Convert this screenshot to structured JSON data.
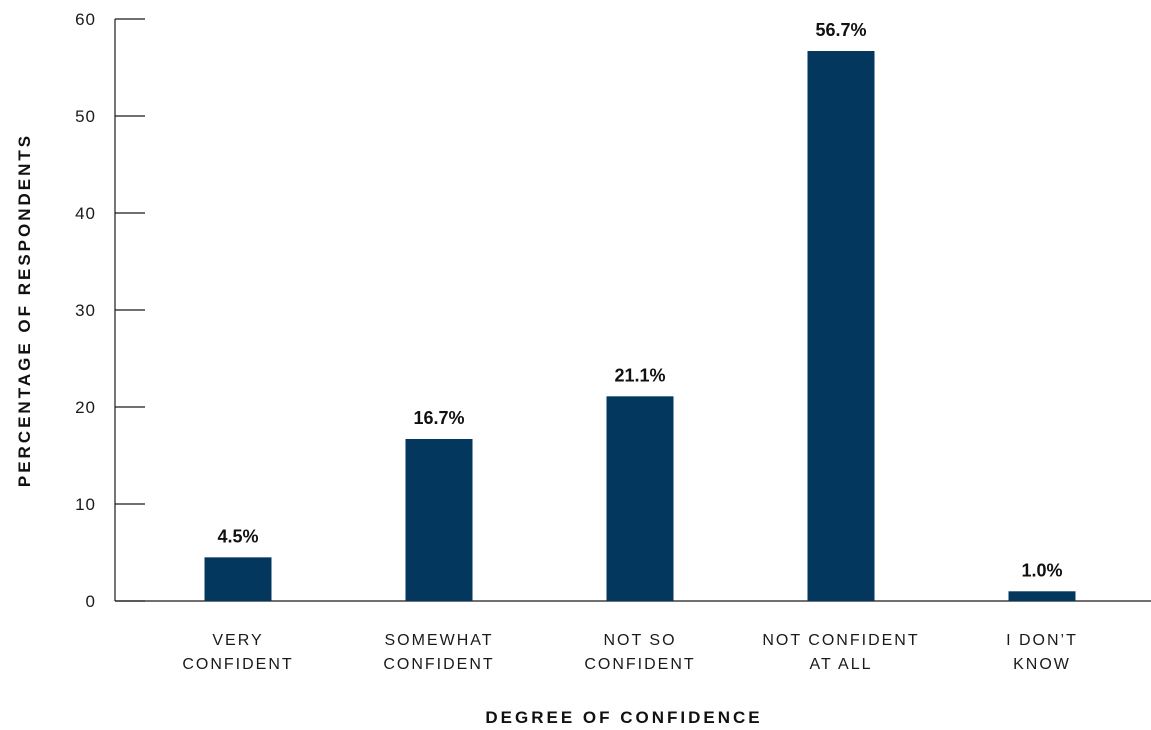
{
  "chart_data": {
    "type": "bar",
    "categories": [
      [
        "VERY",
        "CONFIDENT"
      ],
      [
        "SOMEWHAT",
        "CONFIDENT"
      ],
      [
        "NOT SO",
        "CONFIDENT"
      ],
      [
        "NOT CONFIDENT",
        "AT ALL"
      ],
      [
        "I DON’T",
        "KNOW"
      ]
    ],
    "values": [
      4.5,
      16.7,
      21.1,
      56.7,
      1.0
    ],
    "data_labels": [
      "4.5%",
      "16.7%",
      "21.1%",
      "56.7%",
      "1.0%"
    ],
    "xlabel": "DEGREE OF CONFIDENCE",
    "ylabel": "PERCENTAGE OF RESPONDENTS",
    "ylim": [
      0,
      60
    ],
    "yticks": [
      0,
      10,
      20,
      30,
      40,
      50,
      60
    ],
    "grid": false,
    "bar_color": "#04375e",
    "axis_color": "#1a1a1a"
  }
}
